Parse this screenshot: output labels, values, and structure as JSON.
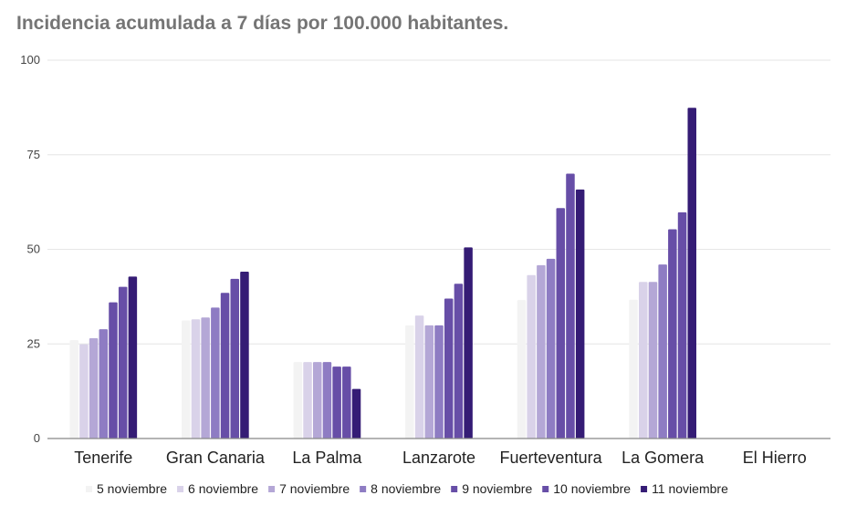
{
  "chart_data": {
    "type": "bar",
    "title": "Incidencia acumulada a 7 días por 100.000 habitantes.",
    "xlabel": "",
    "ylabel": "",
    "ylim": [
      0,
      100
    ],
    "yticks": [
      "0",
      "25",
      "50",
      "75",
      "100"
    ],
    "ytick_values": [
      0,
      25,
      50,
      75,
      100
    ],
    "grid": true,
    "legend_position": "bottom",
    "categories": [
      "Tenerife",
      "Gran Canaria",
      "La Palma",
      "Lanzarote",
      "Fuerteventura",
      "La Gomera",
      "El Hierro"
    ],
    "series": [
      {
        "name": "5 noviembre",
        "color": "#f3f3f3",
        "values": [
          26.0,
          31.2,
          20.2,
          29.9,
          36.6,
          36.7,
          0
        ]
      },
      {
        "name": "6 noviembre",
        "color": "#d9d2e9",
        "values": [
          24.9,
          31.5,
          20.2,
          32.5,
          43.2,
          41.4,
          0
        ]
      },
      {
        "name": "7 noviembre",
        "color": "#b4a7d6",
        "values": [
          26.5,
          32.0,
          20.2,
          29.9,
          45.8,
          41.4,
          0
        ]
      },
      {
        "name": "8 noviembre",
        "color": "#8e7cc3",
        "values": [
          28.9,
          34.6,
          20.2,
          29.9,
          47.5,
          46.0,
          0
        ]
      },
      {
        "name": "9 noviembre",
        "color": "#674ea7",
        "values": [
          36.0,
          38.5,
          19.0,
          37.0,
          60.9,
          55.3,
          0
        ]
      },
      {
        "name": "10 noviembre",
        "color": "#674ea7",
        "values": [
          40.1,
          42.2,
          19.0,
          40.9,
          70.0,
          59.8,
          0
        ]
      },
      {
        "name": "11 noviembre",
        "color": "#351c75",
        "values": [
          42.8,
          44.1,
          13.1,
          50.5,
          65.8,
          87.4,
          0
        ]
      }
    ]
  }
}
